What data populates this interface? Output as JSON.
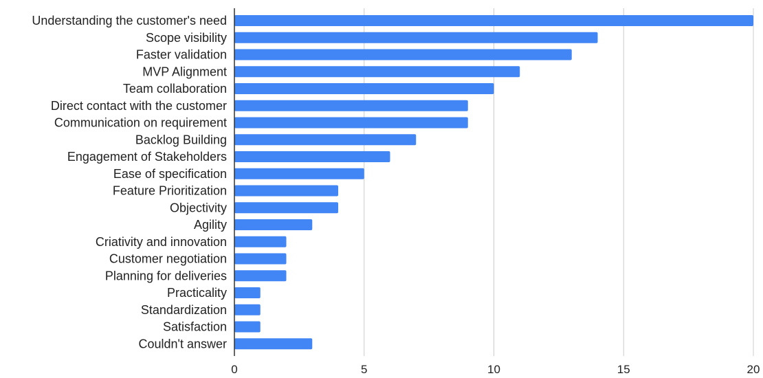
{
  "chart_data": {
    "type": "bar",
    "orientation": "horizontal",
    "title": "",
    "xlabel": "",
    "ylabel": "",
    "categories": [
      "Understanding the customer's need",
      "Scope visibility",
      "Faster validation",
      "MVP Alignment",
      "Team collaboration",
      "Direct contact with the customer",
      "Communication on requirement",
      "Backlog Building",
      "Engagement of Stakeholders",
      "Ease of specification",
      "Feature Prioritization",
      "Objectivity",
      "Agility",
      "Criativity and innovation",
      "Customer negotiation",
      "Planning for deliveries",
      "Practicality",
      "Standardization",
      "Satisfaction",
      "Couldn't answer"
    ],
    "values": [
      20,
      14,
      13,
      11,
      10,
      9,
      9,
      7,
      6,
      5,
      4,
      4,
      3,
      2,
      2,
      2,
      1,
      1,
      1,
      3
    ],
    "xlim": [
      0,
      20
    ],
    "xticks": [
      "0",
      "5",
      "10",
      "15",
      "20"
    ],
    "grid": true,
    "legend": "none",
    "bar_color": "#4285f4",
    "grid_color": "#cccccc",
    "axis_color": "#333333"
  }
}
